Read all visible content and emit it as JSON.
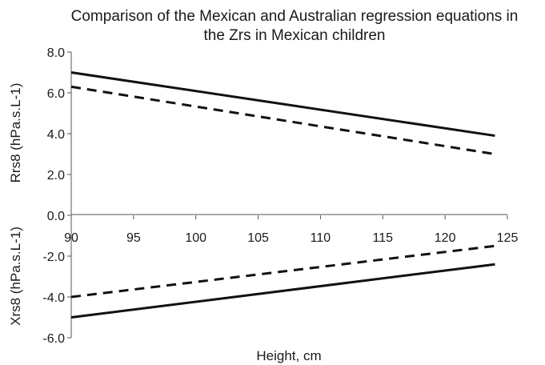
{
  "chart_data": {
    "type": "line",
    "title": "Comparison of the Mexican and Australian regression equations in the Zrs in Mexican children",
    "title_lines": [
      "Comparison of the Mexican and Australian regression equations in",
      "the Zrs in Mexican children"
    ],
    "xlabel": "Height, cm",
    "ylabel_top": "Rrs8 (hPa.s.L-1)",
    "ylabel_bottom": "Xrs8 (hPa.s.L-1)",
    "xlim": [
      90,
      125
    ],
    "ylim": [
      -6.0,
      8.0
    ],
    "x_ticks": [
      "90",
      "95",
      "100",
      "105",
      "110",
      "115",
      "120",
      "125"
    ],
    "y_ticks": [
      "8.0",
      "6.0",
      "4.0",
      "2.0",
      "0.0",
      "-2.0",
      "-4.0",
      "-6.0"
    ],
    "grid": false,
    "legend": "none",
    "series": [
      {
        "style": "solid",
        "color": "#111111",
        "x": [
          90,
          124
        ],
        "y": [
          7.0,
          3.9
        ]
      },
      {
        "style": "dashed",
        "color": "#111111",
        "x": [
          90,
          124
        ],
        "y": [
          6.3,
          3.0
        ]
      },
      {
        "style": "solid",
        "color": "#111111",
        "x": [
          90,
          124
        ],
        "y": [
          -5.0,
          -2.4
        ]
      },
      {
        "style": "dashed",
        "color": "#111111",
        "x": [
          90,
          124
        ],
        "y": [
          -4.0,
          -1.5
        ]
      }
    ]
  }
}
